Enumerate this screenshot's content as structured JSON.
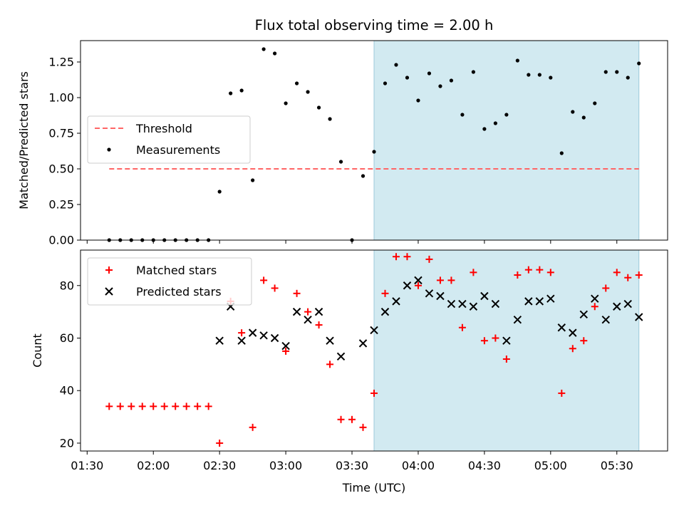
{
  "chart_data": [
    {
      "type": "scatter",
      "title": "Flux total observing time = 2.00 h",
      "ylabel": "Matched/Predicted stars",
      "xlabel": "",
      "xlim": [
        "01:27",
        "05:53"
      ],
      "ylim": [
        0,
        1.4
      ],
      "grid": false,
      "legend_position": "center-left",
      "x_ticks": [
        "01:30",
        "02:00",
        "02:30",
        "03:00",
        "03:30",
        "04:00",
        "04:30",
        "05:00",
        "05:30"
      ],
      "y_ticks": [
        "0.00",
        "0.25",
        "0.50",
        "0.75",
        "1.00",
        "1.25"
      ],
      "shaded_region": {
        "x_start": "03:40",
        "x_end": "05:40",
        "color": "#add8e6"
      },
      "threshold": {
        "name": "Threshold",
        "value": 0.5,
        "x_start": "01:40",
        "x_end": "05:40",
        "color": "#ff6666",
        "style": "dashed"
      },
      "series": [
        {
          "name": "Measurements",
          "marker": "dot",
          "color": "#000000",
          "points": [
            {
              "x": "01:40",
              "y": 0.0
            },
            {
              "x": "01:45",
              "y": 0.0
            },
            {
              "x": "01:50",
              "y": 0.0
            },
            {
              "x": "01:55",
              "y": 0.0
            },
            {
              "x": "02:00",
              "y": 0.0
            },
            {
              "x": "02:05",
              "y": 0.0
            },
            {
              "x": "02:10",
              "y": 0.0
            },
            {
              "x": "02:15",
              "y": 0.0
            },
            {
              "x": "02:20",
              "y": 0.0
            },
            {
              "x": "02:25",
              "y": 0.0
            },
            {
              "x": "02:30",
              "y": 0.34
            },
            {
              "x": "02:35",
              "y": 1.03
            },
            {
              "x": "02:40",
              "y": 1.05
            },
            {
              "x": "02:45",
              "y": 0.42
            },
            {
              "x": "02:50",
              "y": 1.34
            },
            {
              "x": "02:55",
              "y": 1.31
            },
            {
              "x": "03:00",
              "y": 0.96
            },
            {
              "x": "03:05",
              "y": 1.1
            },
            {
              "x": "03:10",
              "y": 1.04
            },
            {
              "x": "03:15",
              "y": 0.93
            },
            {
              "x": "03:20",
              "y": 0.85
            },
            {
              "x": "03:25",
              "y": 0.55
            },
            {
              "x": "03:30",
              "y": 0.0
            },
            {
              "x": "03:35",
              "y": 0.45
            },
            {
              "x": "03:40",
              "y": 0.62
            },
            {
              "x": "03:45",
              "y": 1.1
            },
            {
              "x": "03:50",
              "y": 1.23
            },
            {
              "x": "03:55",
              "y": 1.14
            },
            {
              "x": "04:00",
              "y": 0.98
            },
            {
              "x": "04:05",
              "y": 1.17
            },
            {
              "x": "04:10",
              "y": 1.08
            },
            {
              "x": "04:15",
              "y": 1.12
            },
            {
              "x": "04:20",
              "y": 0.88
            },
            {
              "x": "04:25",
              "y": 1.18
            },
            {
              "x": "04:30",
              "y": 0.78
            },
            {
              "x": "04:35",
              "y": 0.82
            },
            {
              "x": "04:40",
              "y": 0.88
            },
            {
              "x": "04:45",
              "y": 1.26
            },
            {
              "x": "04:50",
              "y": 1.16
            },
            {
              "x": "04:55",
              "y": 1.16
            },
            {
              "x": "05:00",
              "y": 1.14
            },
            {
              "x": "05:05",
              "y": 0.61
            },
            {
              "x": "05:10",
              "y": 0.9
            },
            {
              "x": "05:15",
              "y": 0.86
            },
            {
              "x": "05:20",
              "y": 0.96
            },
            {
              "x": "05:25",
              "y": 1.18
            },
            {
              "x": "05:30",
              "y": 1.18
            },
            {
              "x": "05:35",
              "y": 1.14
            },
            {
              "x": "05:40",
              "y": 1.24
            }
          ]
        }
      ]
    },
    {
      "type": "scatter",
      "title": "",
      "ylabel": "Count",
      "xlabel": "Time (UTC)",
      "xlim": [
        "01:27",
        "05:53"
      ],
      "ylim": [
        17,
        93.5
      ],
      "grid": false,
      "legend_position": "top-left",
      "x_ticks": [
        "01:30",
        "02:00",
        "02:30",
        "03:00",
        "03:30",
        "04:00",
        "04:30",
        "05:00",
        "05:30"
      ],
      "y_ticks": [
        "20",
        "40",
        "60",
        "80"
      ],
      "shaded_region": {
        "x_start": "03:40",
        "x_end": "05:40",
        "color": "#add8e6"
      },
      "series": [
        {
          "name": "Matched stars",
          "marker": "plus",
          "color": "#ff0000",
          "points": [
            {
              "x": "01:40",
              "y": 34
            },
            {
              "x": "01:45",
              "y": 34
            },
            {
              "x": "01:50",
              "y": 34
            },
            {
              "x": "01:55",
              "y": 34
            },
            {
              "x": "02:00",
              "y": 34
            },
            {
              "x": "02:05",
              "y": 34
            },
            {
              "x": "02:10",
              "y": 34
            },
            {
              "x": "02:15",
              "y": 34
            },
            {
              "x": "02:20",
              "y": 34
            },
            {
              "x": "02:25",
              "y": 34
            },
            {
              "x": "02:30",
              "y": 20
            },
            {
              "x": "02:35",
              "y": 74
            },
            {
              "x": "02:40",
              "y": 62
            },
            {
              "x": "02:45",
              "y": 26
            },
            {
              "x": "02:50",
              "y": 82
            },
            {
              "x": "02:55",
              "y": 79
            },
            {
              "x": "03:00",
              "y": 55
            },
            {
              "x": "03:05",
              "y": 77
            },
            {
              "x": "03:10",
              "y": 70
            },
            {
              "x": "03:15",
              "y": 65
            },
            {
              "x": "03:20",
              "y": 50
            },
            {
              "x": "03:25",
              "y": 29
            },
            {
              "x": "03:30",
              "y": 29
            },
            {
              "x": "03:35",
              "y": 26
            },
            {
              "x": "03:40",
              "y": 39
            },
            {
              "x": "03:45",
              "y": 77
            },
            {
              "x": "03:50",
              "y": 91
            },
            {
              "x": "03:55",
              "y": 91
            },
            {
              "x": "04:00",
              "y": 80
            },
            {
              "x": "04:05",
              "y": 90
            },
            {
              "x": "04:10",
              "y": 82
            },
            {
              "x": "04:15",
              "y": 82
            },
            {
              "x": "04:20",
              "y": 64
            },
            {
              "x": "04:25",
              "y": 85
            },
            {
              "x": "04:30",
              "y": 59
            },
            {
              "x": "04:35",
              "y": 60
            },
            {
              "x": "04:40",
              "y": 52
            },
            {
              "x": "04:45",
              "y": 84
            },
            {
              "x": "04:50",
              "y": 86
            },
            {
              "x": "04:55",
              "y": 86
            },
            {
              "x": "05:00",
              "y": 85
            },
            {
              "x": "05:05",
              "y": 39
            },
            {
              "x": "05:10",
              "y": 56
            },
            {
              "x": "05:15",
              "y": 59
            },
            {
              "x": "05:20",
              "y": 72
            },
            {
              "x": "05:25",
              "y": 79
            },
            {
              "x": "05:30",
              "y": 85
            },
            {
              "x": "05:35",
              "y": 83
            },
            {
              "x": "05:40",
              "y": 84
            }
          ]
        },
        {
          "name": "Predicted stars",
          "marker": "x",
          "color": "#000000",
          "points": [
            {
              "x": "02:30",
              "y": 59
            },
            {
              "x": "02:35",
              "y": 72
            },
            {
              "x": "02:40",
              "y": 59
            },
            {
              "x": "02:45",
              "y": 62
            },
            {
              "x": "02:50",
              "y": 61
            },
            {
              "x": "02:55",
              "y": 60
            },
            {
              "x": "03:00",
              "y": 57
            },
            {
              "x": "03:05",
              "y": 70
            },
            {
              "x": "03:10",
              "y": 67
            },
            {
              "x": "03:15",
              "y": 70
            },
            {
              "x": "03:20",
              "y": 59
            },
            {
              "x": "03:25",
              "y": 53
            },
            {
              "x": "03:35",
              "y": 58
            },
            {
              "x": "03:40",
              "y": 63
            },
            {
              "x": "03:45",
              "y": 70
            },
            {
              "x": "03:50",
              "y": 74
            },
            {
              "x": "03:55",
              "y": 80
            },
            {
              "x": "04:00",
              "y": 82
            },
            {
              "x": "04:05",
              "y": 77
            },
            {
              "x": "04:10",
              "y": 76
            },
            {
              "x": "04:15",
              "y": 73
            },
            {
              "x": "04:20",
              "y": 73
            },
            {
              "x": "04:25",
              "y": 72
            },
            {
              "x": "04:30",
              "y": 76
            },
            {
              "x": "04:35",
              "y": 73
            },
            {
              "x": "04:40",
              "y": 59
            },
            {
              "x": "04:45",
              "y": 67
            },
            {
              "x": "04:50",
              "y": 74
            },
            {
              "x": "04:55",
              "y": 74
            },
            {
              "x": "05:00",
              "y": 75
            },
            {
              "x": "05:05",
              "y": 64
            },
            {
              "x": "05:10",
              "y": 62
            },
            {
              "x": "05:15",
              "y": 69
            },
            {
              "x": "05:20",
              "y": 75
            },
            {
              "x": "05:25",
              "y": 67
            },
            {
              "x": "05:30",
              "y": 72
            },
            {
              "x": "05:35",
              "y": 73
            },
            {
              "x": "05:40",
              "y": 68
            }
          ]
        }
      ]
    }
  ]
}
